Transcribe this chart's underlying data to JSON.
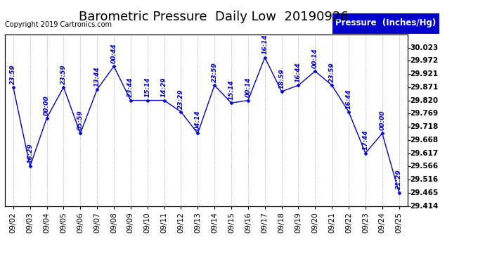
{
  "title": "Barometric Pressure  Daily Low  20190926",
  "copyright": "Copyright 2019 Cartronics.com",
  "legend_label": "Pressure  (Inches/Hg)",
  "background_color": "#ffffff",
  "line_color": "#0000cc",
  "grid_color": "#b0b0b0",
  "text_color": "#0000cc",
  "dates": [
    "09/02",
    "09/03",
    "09/04",
    "09/05",
    "09/06",
    "09/07",
    "09/08",
    "09/09",
    "09/10",
    "09/11",
    "09/12",
    "09/13",
    "09/14",
    "09/15",
    "09/16",
    "09/17",
    "09/18",
    "09/19",
    "09/20",
    "09/21",
    "09/22",
    "09/23",
    "09/24",
    "09/25"
  ],
  "values": [
    29.871,
    29.566,
    29.752,
    29.871,
    29.693,
    29.862,
    29.951,
    29.82,
    29.82,
    29.82,
    29.776,
    29.693,
    29.878,
    29.81,
    29.82,
    29.985,
    29.854,
    29.878,
    29.932,
    29.878,
    29.776,
    29.617,
    29.693,
    29.465
  ],
  "time_labels": [
    "23:59",
    "16:29",
    "00:00",
    "23:59",
    "05:59",
    "13:44",
    "00:44",
    "23:44",
    "15:14",
    "14:29",
    "23:29",
    "04:14",
    "23:59",
    "15:14",
    "00:14",
    "16:14",
    "18:59",
    "16:44",
    "00:14",
    "23:59",
    "16:44",
    "17:44",
    "00:00",
    "21:29"
  ],
  "ylim_min": 29.414,
  "ylim_max": 30.074,
  "ytick_values": [
    29.414,
    29.465,
    29.516,
    29.566,
    29.617,
    29.668,
    29.718,
    29.769,
    29.82,
    29.871,
    29.921,
    29.972,
    30.023
  ],
  "ytick_labels": [
    "29.414",
    "29.465",
    "29.516",
    "29.566",
    "29.617",
    "29.668",
    "29.718",
    "29.769",
    "29.820",
    "29.871",
    "29.921",
    "29.972",
    "30.023"
  ],
  "title_fontsize": 13,
  "annotation_fontsize": 6.5,
  "tick_fontsize": 7.5,
  "legend_fontsize": 8.5
}
